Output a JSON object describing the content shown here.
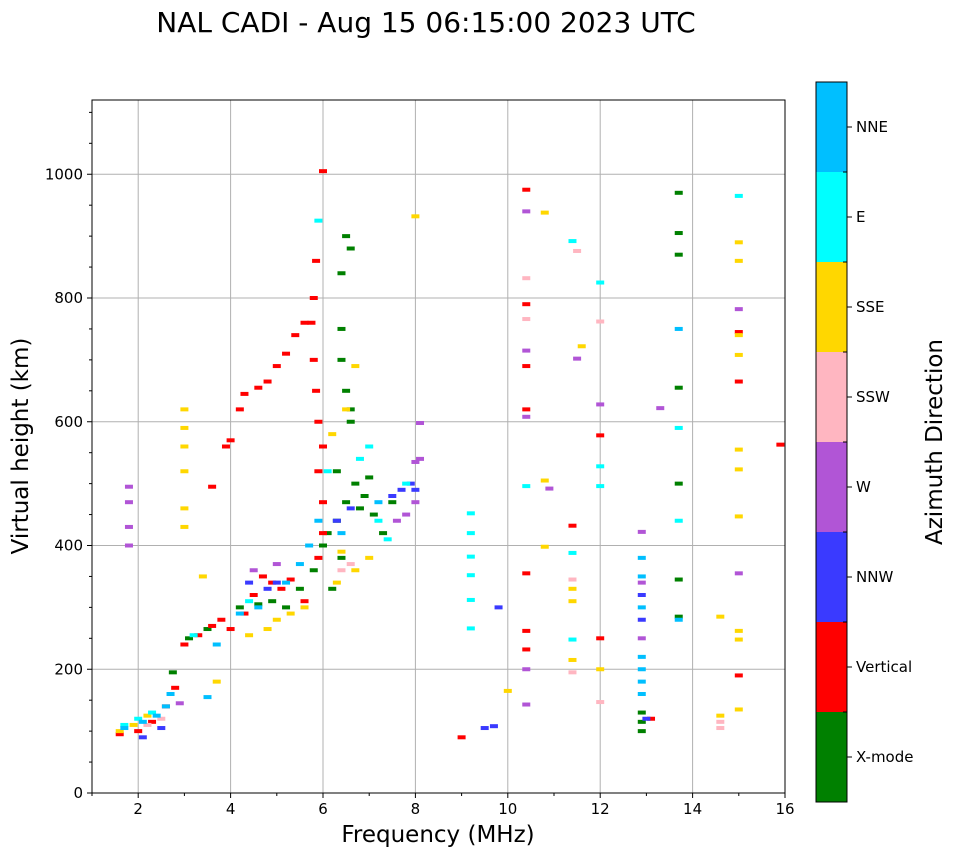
{
  "chart_data": {
    "type": "scatter",
    "title": "NAL CADI - Aug 15 06:15:00 2023 UTC",
    "xlabel": "Frequency (MHz)",
    "ylabel": "Virtual height (km)",
    "xlim": [
      1,
      16
    ],
    "ylim": [
      0,
      1120
    ],
    "xticks": [
      2,
      4,
      6,
      8,
      10,
      12,
      14,
      16
    ],
    "yticks": [
      0,
      200,
      400,
      600,
      800,
      1000
    ],
    "grid": true,
    "colorbar": {
      "label": "Azimuth Direction",
      "categories": [
        {
          "name": "X-mode",
          "color": "#008000"
        },
        {
          "name": "Vertical",
          "color": "#ff0000"
        },
        {
          "name": "NNW",
          "color": "#3a3aff"
        },
        {
          "name": "W",
          "color": "#b155d6"
        },
        {
          "name": "SSW",
          "color": "#ffb6c1"
        },
        {
          "name": "SSE",
          "color": "#ffd700"
        },
        {
          "name": "E",
          "color": "#00ffff"
        },
        {
          "name": "NNE",
          "color": "#00bfff"
        }
      ]
    },
    "series": [
      {
        "name": "X-mode",
        "points": [
          [
            2.75,
            195
          ],
          [
            3.1,
            250
          ],
          [
            3.5,
            265
          ],
          [
            4.2,
            300
          ],
          [
            4.6,
            305
          ],
          [
            4.9,
            310
          ],
          [
            5.2,
            300
          ],
          [
            5.5,
            330
          ],
          [
            5.8,
            360
          ],
          [
            6.0,
            400
          ],
          [
            6.1,
            420
          ],
          [
            6.3,
            440
          ],
          [
            6.5,
            470
          ],
          [
            6.7,
            500
          ],
          [
            6.9,
            480
          ],
          [
            7.1,
            450
          ],
          [
            7.3,
            420
          ],
          [
            7.5,
            470
          ],
          [
            6.2,
            330
          ],
          [
            6.4,
            380
          ],
          [
            6.6,
            600
          ],
          [
            6.5,
            650
          ],
          [
            6.4,
            700
          ],
          [
            6.4,
            750
          ],
          [
            6.4,
            840
          ],
          [
            6.5,
            900
          ],
          [
            6.6,
            880
          ],
          [
            6.6,
            620
          ],
          [
            6.3,
            520
          ],
          [
            6.8,
            460
          ],
          [
            7.0,
            510
          ],
          [
            13.7,
            970
          ],
          [
            13.7,
            905
          ],
          [
            13.7,
            870
          ],
          [
            13.7,
            655
          ],
          [
            13.7,
            500
          ],
          [
            13.7,
            345
          ],
          [
            13.7,
            285
          ],
          [
            12.9,
            100
          ],
          [
            12.9,
            115
          ],
          [
            12.9,
            130
          ]
        ]
      },
      {
        "name": "Vertical",
        "points": [
          [
            1.6,
            95
          ],
          [
            2.0,
            100
          ],
          [
            2.3,
            115
          ],
          [
            2.6,
            140
          ],
          [
            2.8,
            170
          ],
          [
            3.0,
            240
          ],
          [
            3.3,
            255
          ],
          [
            3.6,
            270
          ],
          [
            3.8,
            280
          ],
          [
            4.0,
            265
          ],
          [
            4.3,
            290
          ],
          [
            4.5,
            320
          ],
          [
            4.7,
            350
          ],
          [
            4.9,
            340
          ],
          [
            5.1,
            330
          ],
          [
            5.3,
            345
          ],
          [
            5.6,
            310
          ],
          [
            5.9,
            380
          ],
          [
            6.0,
            420
          ],
          [
            6.0,
            470
          ],
          [
            5.9,
            520
          ],
          [
            6.0,
            560
          ],
          [
            5.9,
            600
          ],
          [
            5.85,
            650
          ],
          [
            5.8,
            700
          ],
          [
            5.75,
            760
          ],
          [
            5.8,
            800
          ],
          [
            5.85,
            860
          ],
          [
            6.0,
            1005
          ],
          [
            5.6,
            760
          ],
          [
            5.4,
            740
          ],
          [
            5.2,
            710
          ],
          [
            5.0,
            690
          ],
          [
            4.8,
            665
          ],
          [
            4.6,
            655
          ],
          [
            4.3,
            645
          ],
          [
            4.2,
            620
          ],
          [
            4.0,
            570
          ],
          [
            3.9,
            560
          ],
          [
            3.6,
            495
          ],
          [
            9.0,
            90
          ],
          [
            10.4,
            975
          ],
          [
            10.4,
            790
          ],
          [
            10.4,
            690
          ],
          [
            10.4,
            620
          ],
          [
            10.4,
            355
          ],
          [
            10.4,
            262
          ],
          [
            10.4,
            232
          ],
          [
            11.4,
            432
          ],
          [
            12.0,
            578
          ],
          [
            12.0,
            250
          ],
          [
            13.1,
            120
          ],
          [
            15.0,
            745
          ],
          [
            15.0,
            665
          ],
          [
            15.0,
            190
          ],
          [
            15.9,
            563
          ]
        ]
      },
      {
        "name": "NNW",
        "points": [
          [
            2.1,
            90
          ],
          [
            2.5,
            105
          ],
          [
            4.4,
            340
          ],
          [
            4.8,
            330
          ],
          [
            5.0,
            340
          ],
          [
            6.3,
            440
          ],
          [
            6.6,
            460
          ],
          [
            7.5,
            480
          ],
          [
            7.7,
            490
          ],
          [
            7.9,
            500
          ],
          [
            8.0,
            490
          ],
          [
            9.5,
            105
          ],
          [
            9.7,
            108
          ],
          [
            9.8,
            300
          ],
          [
            12.9,
            280
          ],
          [
            12.9,
            320
          ],
          [
            13.0,
            120
          ]
        ]
      },
      {
        "name": "W",
        "points": [
          [
            1.8,
            400
          ],
          [
            1.8,
            430
          ],
          [
            1.8,
            470
          ],
          [
            1.8,
            495
          ],
          [
            2.9,
            145
          ],
          [
            4.5,
            360
          ],
          [
            5.0,
            370
          ],
          [
            7.6,
            440
          ],
          [
            7.8,
            450
          ],
          [
            8.0,
            470
          ],
          [
            8.1,
            540
          ],
          [
            8.1,
            598
          ],
          [
            8.0,
            535
          ],
          [
            10.4,
            940
          ],
          [
            10.4,
            715
          ],
          [
            10.4,
            608
          ],
          [
            10.4,
            143
          ],
          [
            10.4,
            200
          ],
          [
            10.9,
            492
          ],
          [
            11.5,
            702
          ],
          [
            12.0,
            628
          ],
          [
            12.9,
            422
          ],
          [
            12.9,
            340
          ],
          [
            12.9,
            250
          ],
          [
            13.3,
            622
          ],
          [
            15.0,
            782
          ],
          [
            15.0,
            355
          ]
        ]
      },
      {
        "name": "SSW",
        "points": [
          [
            2.2,
            110
          ],
          [
            2.5,
            120
          ],
          [
            6.4,
            360
          ],
          [
            6.6,
            370
          ],
          [
            10.4,
            832
          ],
          [
            10.4,
            766
          ],
          [
            11.4,
            345
          ],
          [
            11.4,
            195
          ],
          [
            11.5,
            876
          ],
          [
            12.0,
            762
          ],
          [
            12.0,
            147
          ],
          [
            14.6,
            105
          ],
          [
            14.6,
            115
          ]
        ]
      },
      {
        "name": "SSE",
        "points": [
          [
            1.6,
            100
          ],
          [
            1.9,
            110
          ],
          [
            2.2,
            125
          ],
          [
            3.0,
            430
          ],
          [
            3.0,
            460
          ],
          [
            3.0,
            520
          ],
          [
            3.0,
            560
          ],
          [
            3.0,
            590
          ],
          [
            3.0,
            620
          ],
          [
            3.4,
            350
          ],
          [
            3.7,
            180
          ],
          [
            4.4,
            255
          ],
          [
            4.8,
            265
          ],
          [
            5.0,
            280
          ],
          [
            5.3,
            290
          ],
          [
            5.6,
            300
          ],
          [
            6.3,
            340
          ],
          [
            6.7,
            360
          ],
          [
            7.0,
            380
          ],
          [
            6.4,
            390
          ],
          [
            6.2,
            580
          ],
          [
            6.5,
            620
          ],
          [
            6.7,
            690
          ],
          [
            8.0,
            932
          ],
          [
            10.0,
            165
          ],
          [
            10.8,
            938
          ],
          [
            10.8,
            505
          ],
          [
            10.8,
            398
          ],
          [
            11.4,
            330
          ],
          [
            11.4,
            310
          ],
          [
            11.4,
            215
          ],
          [
            11.6,
            722
          ],
          [
            12.0,
            200
          ],
          [
            14.6,
            285
          ],
          [
            14.6,
            125
          ],
          [
            15.0,
            890
          ],
          [
            15.0,
            860
          ],
          [
            15.0,
            740
          ],
          [
            15.0,
            708
          ],
          [
            15.0,
            555
          ],
          [
            15.0,
            523
          ],
          [
            15.0,
            447
          ],
          [
            15.0,
            262
          ],
          [
            15.0,
            248
          ],
          [
            15.0,
            135
          ]
        ]
      },
      {
        "name": "E",
        "points": [
          [
            1.7,
            110
          ],
          [
            2.0,
            120
          ],
          [
            2.3,
            130
          ],
          [
            3.2,
            255
          ],
          [
            4.4,
            310
          ],
          [
            5.9,
            925
          ],
          [
            6.1,
            520
          ],
          [
            6.8,
            540
          ],
          [
            7.0,
            560
          ],
          [
            7.2,
            440
          ],
          [
            7.4,
            410
          ],
          [
            7.8,
            500
          ],
          [
            9.2,
            452
          ],
          [
            9.2,
            420
          ],
          [
            9.2,
            382
          ],
          [
            9.2,
            352
          ],
          [
            9.2,
            312
          ],
          [
            9.2,
            266
          ],
          [
            10.4,
            496
          ],
          [
            11.4,
            892
          ],
          [
            11.4,
            388
          ],
          [
            11.4,
            248
          ],
          [
            12.0,
            825
          ],
          [
            12.0,
            528
          ],
          [
            12.0,
            496
          ],
          [
            13.7,
            590
          ],
          [
            13.7,
            440
          ],
          [
            15.0,
            965
          ]
        ]
      },
      {
        "name": "NNE",
        "points": [
          [
            1.7,
            105
          ],
          [
            2.1,
            115
          ],
          [
            2.4,
            125
          ],
          [
            2.6,
            140
          ],
          [
            2.7,
            160
          ],
          [
            3.5,
            155
          ],
          [
            3.7,
            240
          ],
          [
            4.2,
            290
          ],
          [
            4.6,
            300
          ],
          [
            5.2,
            340
          ],
          [
            5.5,
            370
          ],
          [
            5.7,
            400
          ],
          [
            5.9,
            440
          ],
          [
            6.4,
            420
          ],
          [
            7.2,
            470
          ],
          [
            12.9,
            380
          ],
          [
            12.9,
            350
          ],
          [
            12.9,
            300
          ],
          [
            12.9,
            220
          ],
          [
            12.9,
            200
          ],
          [
            12.9,
            180
          ],
          [
            12.9,
            160
          ],
          [
            13.7,
            750
          ],
          [
            13.7,
            280
          ]
        ]
      }
    ]
  }
}
